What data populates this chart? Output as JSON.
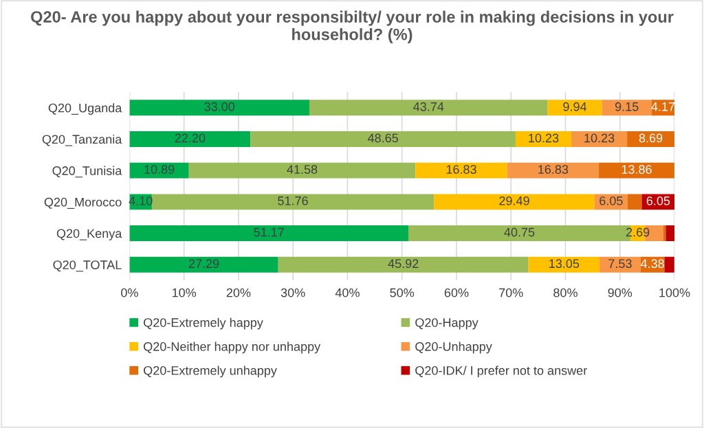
{
  "chart_data": {
    "type": "bar",
    "orientation": "horizontal",
    "stacked": true,
    "title": "Q20- Are you happy about your responsibilty/ your role in making decisions in your household? (%)",
    "categories": [
      "Q20_Uganda",
      "Q20_Tanzania",
      "Q20_Tunisia",
      "Q20_Morocco",
      "Q20_Kenya",
      "Q20_TOTAL"
    ],
    "series": [
      {
        "name": "Q20-Extremely happy",
        "color": "#00b050",
        "values": [
          33.0,
          22.2,
          10.89,
          4.1,
          51.17,
          27.29
        ],
        "value_labels": [
          "33.00",
          "22.20",
          "10.89",
          "4.10",
          "51.17",
          "27.29"
        ]
      },
      {
        "name": "Q20-Happy",
        "color": "#9bbb59",
        "values": [
          43.74,
          48.65,
          41.58,
          51.76,
          40.75,
          45.92
        ],
        "value_labels": [
          "43.74",
          "48.65",
          "41.58",
          "51.76",
          "40.75",
          "45.92"
        ]
      },
      {
        "name": "Q20-Neither happy nor unhappy",
        "color": "#ffc000",
        "values": [
          9.94,
          10.23,
          16.83,
          29.49,
          2.69,
          13.05
        ],
        "value_labels": [
          "9.94",
          "10.23",
          "16.83",
          "29.49",
          "2.69",
          "13.05"
        ]
      },
      {
        "name": "Q20-Unhappy",
        "color": "#f79646",
        "values": [
          9.15,
          10.23,
          16.83,
          6.05,
          3.3,
          7.53
        ],
        "value_labels": [
          "9.15",
          "10.23",
          "16.83",
          "6.05",
          null,
          "7.53"
        ]
      },
      {
        "name": "Q20-Extremely unhappy",
        "color": "#e26b0a",
        "values": [
          4.17,
          8.69,
          13.86,
          2.6,
          0.5,
          4.38
        ],
        "value_labels": [
          "4.17",
          "8.69",
          "13.86",
          null,
          null,
          "4.38"
        ]
      },
      {
        "name": "Q20-IDK/ I prefer not to answer",
        "color": "#c00000",
        "values": [
          0,
          0,
          0,
          6.05,
          1.6,
          1.8
        ],
        "value_labels": [
          null,
          null,
          null,
          "6.05",
          null,
          null
        ]
      }
    ],
    "xlim": [
      0,
      100
    ],
    "xticks": [
      {
        "value": 0,
        "label": "0%"
      },
      {
        "value": 10,
        "label": "10%"
      },
      {
        "value": 20,
        "label": "20%"
      },
      {
        "value": 30,
        "label": "30%"
      },
      {
        "value": 40,
        "label": "40%"
      },
      {
        "value": 50,
        "label": "50%"
      },
      {
        "value": 60,
        "label": "60%"
      },
      {
        "value": 70,
        "label": "70%"
      },
      {
        "value": 80,
        "label": "80%"
      },
      {
        "value": 90,
        "label": "90%"
      },
      {
        "value": 100,
        "label": "100%"
      }
    ],
    "grid": "x",
    "legend": "bottom"
  }
}
